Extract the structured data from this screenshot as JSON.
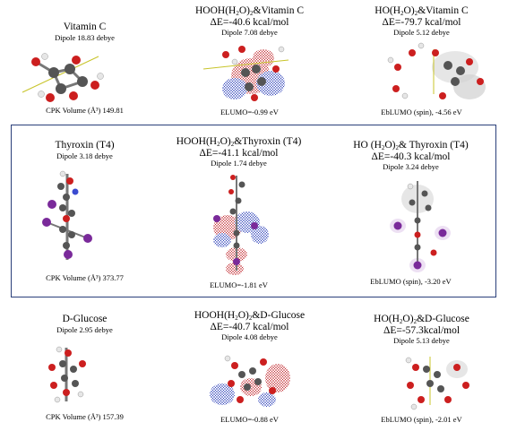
{
  "rows": [
    {
      "cells": [
        {
          "title": "Vitamin C",
          "dipole": "Dipole 18.83 debye",
          "footer": "CPK Volume (Å³) 149.81"
        },
        {
          "title_pre": "HOOH(H",
          "title_sub1": "2",
          "title_mid": "O)",
          "title_sub2": "2",
          "title_post": "&Vitamin C",
          "energy": "ΔE=-40.6 kcal/mol",
          "dipole": "Dipole 7.08 debye",
          "footer": "ELUMO=-0.99 eV"
        },
        {
          "title_pre": "HO(H",
          "title_sub1": "2",
          "title_mid": "O)",
          "title_sub2": "2",
          "title_post": "&Vitamin C",
          "energy": "ΔE=-79.7 kcal/mol",
          "dipole": "Dipole 5.12 debye",
          "footer": "EbLUMO (spin), -4.56 eV"
        }
      ]
    },
    {
      "cells": [
        {
          "title": "Thyroxin (T4)",
          "dipole": "Dipole 3.18 debye",
          "footer": "CPK Volume (Å³) 373.77"
        },
        {
          "title_pre": "HOOH(H",
          "title_sub1": "2",
          "title_mid": "O)",
          "title_sub2": "2",
          "title_post": "&Thyroxin (T4)",
          "energy": "ΔE=-41.1 kcal/mol",
          "dipole": "Dipole 1.74 debye",
          "footer": "ELUMO=-1.81 eV"
        },
        {
          "title_pre": "HO (H",
          "title_sub1": "2",
          "title_mid": "O)",
          "title_sub2": "2",
          "title_post": "& Thyroxin (T4)",
          "energy": "ΔE=-40.3 kcal/mol",
          "dipole": "Dipole 3.24 debye",
          "footer": "EbLUMO (spin), -3.20 eV"
        }
      ]
    },
    {
      "cells": [
        {
          "title": "D-Glucose",
          "dipole": "Dipole 2.95 debye",
          "footer": "CPK Volume (Å³) 157.39"
        },
        {
          "title_pre": "HOOH(H",
          "title_sub1": "2",
          "title_mid": "O)",
          "title_sub2": "2",
          "title_post": "&D-Glucose",
          "energy": "ΔE=-40.7 kcal/mol",
          "dipole": "Dipole 4.08 debye",
          "footer": "ELUMO=-0.88 eV"
        },
        {
          "title_pre": "HO(H",
          "title_sub1": "2",
          "title_mid": "O)",
          "title_sub2": "2",
          "title_post": "&D-Glucose",
          "energy": "ΔE=-57.3kcal/mol",
          "dipole": "Dipole 5.13 debye",
          "footer": "EbLUMO (spin), -2.01 eV"
        }
      ]
    }
  ],
  "colors": {
    "carbon": "#555555",
    "oxygen": "#cc1f1f",
    "hydrogen": "#e6e6e6",
    "iodine": "#7a2a9a",
    "nitrogen": "#3b4bd0",
    "box_border": "#2a3f7a",
    "orbital_red": "#c0262b",
    "orbital_blue": "#2b3fb8",
    "dipole_arrow": "#c8c42a"
  }
}
